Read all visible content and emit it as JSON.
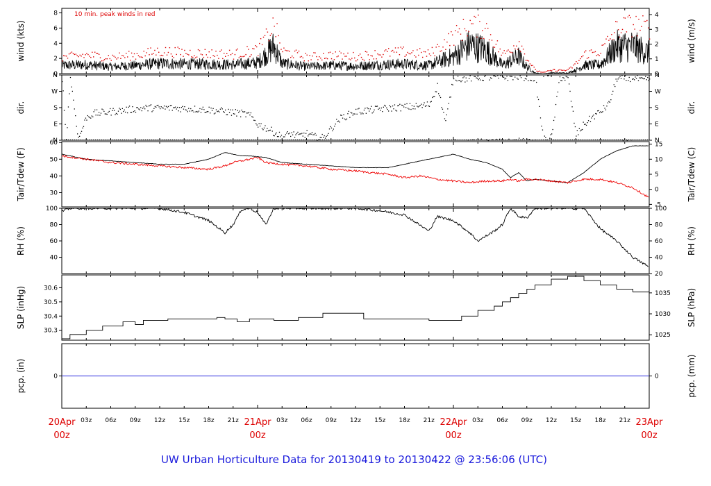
{
  "title": "UW Urban Horticulture Data for 20130419  to  20130422 @ 23:56:06  (UTC)",
  "colors": {
    "main": "#000000",
    "peak": "#dd0000",
    "dew": "#ee0000",
    "precip": "#2222dd",
    "day_label": "#dd0000",
    "title": "#1a1adc"
  },
  "time_axis": {
    "hours_total": 72,
    "day_labels": [
      {
        "hour": 0,
        "date": "20Apr",
        "time": "00z"
      },
      {
        "hour": 24,
        "date": "21Apr",
        "time": "00z"
      },
      {
        "hour": 48,
        "date": "22Apr",
        "time": "00z"
      },
      {
        "hour": 72,
        "date": "23Apr",
        "time": "00z"
      }
    ],
    "hour_labels": [
      "03z",
      "06z",
      "09z",
      "12z",
      "15z",
      "18z",
      "21z"
    ]
  },
  "chart_data": [
    {
      "type": "line",
      "name": "wind",
      "ylabel_left": "wind (kts)",
      "ylabel_right": "wind (m/s)",
      "annotation": "10 min. peak winds in red",
      "ylim": [
        0,
        8.6
      ],
      "left_ticks": [
        0,
        2,
        4,
        6,
        8
      ],
      "right_ticks": [
        0,
        1,
        2,
        3,
        4
      ],
      "right_factor": 1.9438,
      "series": [
        {
          "hours": [
            0,
            3,
            6,
            9,
            12,
            15,
            18,
            21,
            24,
            26,
            27,
            30,
            33,
            36,
            39,
            42,
            45,
            48,
            50,
            52,
            54,
            56,
            57,
            58,
            59,
            60,
            61,
            62,
            63,
            64,
            66,
            68,
            70,
            72
          ],
          "values": [
            1.2,
            1.3,
            1.0,
            1.2,
            1.5,
            1.4,
            1.4,
            1.3,
            1.6,
            4.0,
            1.5,
            1.0,
            1.2,
            1.1,
            1.3,
            1.4,
            1.2,
            2.5,
            4.2,
            3.5,
            1.2,
            2.5,
            1.0,
            0.1,
            0.0,
            0.1,
            0.1,
            0.1,
            0.5,
            1.2,
            1.3,
            4.0,
            4.0,
            3.0
          ]
        },
        {
          "name": "10 min. peak winds",
          "hours": [
            0,
            3,
            6,
            9,
            12,
            15,
            18,
            21,
            24,
            26,
            27,
            30,
            33,
            36,
            39,
            42,
            45,
            48,
            50,
            52,
            54,
            56,
            57,
            58,
            59,
            60,
            61,
            62,
            63,
            64,
            66,
            68,
            70,
            72
          ],
          "values": [
            2.2,
            2.5,
            2.2,
            2.5,
            3.0,
            2.8,
            2.7,
            2.6,
            3.2,
            6.5,
            3.0,
            2.2,
            2.5,
            2.3,
            2.7,
            2.9,
            2.6,
            5.0,
            6.5,
            6.0,
            2.5,
            4.3,
            2.0,
            0.5,
            0.2,
            0.5,
            0.5,
            0.5,
            1.4,
            2.6,
            3.0,
            6.0,
            6.5,
            6.0
          ]
        }
      ]
    },
    {
      "type": "scatter",
      "name": "dir",
      "ylabel_left": "dir.",
      "ylabel_right": "dir.",
      "ylim": [
        0,
        360
      ],
      "tick_labels": [
        {
          "v": 0,
          "t": "N"
        },
        {
          "v": 90,
          "t": "E"
        },
        {
          "v": 180,
          "t": "S"
        },
        {
          "v": 270,
          "t": "W"
        },
        {
          "v": 360,
          "t": "N"
        }
      ],
      "series": [
        {
          "hours": [
            0,
            0.5,
            1,
            2,
            3,
            4,
            6,
            8,
            10,
            12,
            14,
            16,
            18,
            20,
            22,
            23,
            24,
            25,
            26,
            27,
            28,
            29,
            30,
            31,
            32,
            34,
            36,
            38,
            40,
            42,
            44,
            45,
            46,
            47,
            48,
            49,
            50,
            51,
            52,
            54,
            56,
            57,
            58,
            59,
            60,
            61,
            62,
            63,
            64,
            65,
            66,
            67,
            68,
            69,
            70,
            71,
            72
          ],
          "values": [
            345,
            5,
            350,
            10,
            130,
            150,
            160,
            170,
            180,
            180,
            180,
            175,
            170,
            160,
            150,
            140,
            90,
            70,
            45,
            20,
            40,
            25,
            40,
            20,
            15,
            120,
            160,
            170,
            180,
            185,
            190,
            200,
            300,
            100,
            355,
            340,
            345,
            350,
            350,
            350,
            355,
            350,
            345,
            5,
            20,
            350,
            340,
            30,
            90,
            130,
            160,
            200,
            345,
            340,
            350,
            330,
            340
          ]
        }
      ]
    },
    {
      "type": "line",
      "name": "temp",
      "ylabel_left": "Tair/Tdew (F)",
      "ylabel_right": "Tair/Tdew (C)",
      "ylim": [
        21.5,
        60.5
      ],
      "left_ticks": [
        30,
        40,
        50,
        60
      ],
      "right_ticks": [
        -5,
        0,
        5,
        10,
        15
      ],
      "series": [
        {
          "name": "Tair",
          "hours": [
            0,
            3,
            6,
            9,
            12,
            15,
            18,
            20,
            21,
            22,
            23,
            24,
            25,
            27,
            30,
            33,
            36,
            40,
            42,
            44,
            46,
            48,
            50,
            52,
            54,
            55,
            56,
            57,
            58,
            60,
            62,
            64,
            66,
            68,
            70,
            72
          ],
          "values": [
            53,
            50,
            49,
            48,
            47,
            47,
            50,
            54,
            53,
            52,
            52,
            51.5,
            51,
            48,
            47,
            46,
            45,
            45,
            47,
            49,
            51,
            53,
            50,
            48,
            44,
            39,
            42,
            37,
            38,
            37,
            36,
            42,
            50,
            55,
            58,
            58
          ]
        },
        {
          "name": "Tdew",
          "hours": [
            0,
            3,
            6,
            9,
            12,
            15,
            18,
            20,
            21,
            22,
            23,
            24,
            25,
            27,
            30,
            33,
            36,
            40,
            42,
            44,
            46,
            48,
            50,
            52,
            54,
            55,
            56,
            57,
            58,
            60,
            62,
            64,
            66,
            68,
            70,
            72
          ],
          "values": [
            52,
            50,
            48,
            47,
            46,
            45,
            44,
            46,
            48,
            49,
            50,
            51,
            48,
            47,
            46,
            44,
            43,
            41,
            39,
            40,
            38,
            37,
            36,
            37,
            37,
            38,
            37,
            38,
            38,
            37,
            36,
            38,
            38,
            36,
            33,
            27
          ]
        }
      ]
    },
    {
      "type": "line",
      "name": "rh",
      "ylabel_left": "RH (%)",
      "ylabel_right": "RH (%)",
      "ylim": [
        20,
        100
      ],
      "left_ticks": [
        40,
        60,
        80,
        100
      ],
      "right_ticks": [
        20,
        40,
        60,
        80,
        100
      ],
      "series": [
        {
          "hours": [
            0,
            1,
            3,
            6,
            9,
            12,
            15,
            18,
            20,
            21,
            22,
            23,
            24,
            25,
            26,
            30,
            33,
            36,
            39,
            42,
            45,
            46,
            48,
            50,
            51,
            53,
            54,
            55,
            56,
            57,
            58,
            60,
            62,
            64,
            66,
            68,
            70,
            72
          ],
          "values": [
            96,
            100,
            100,
            100,
            100,
            100,
            95,
            85,
            70,
            80,
            98,
            100,
            95,
            80,
            100,
            100,
            100,
            100,
            97,
            92,
            72,
            90,
            85,
            70,
            60,
            72,
            80,
            100,
            90,
            88,
            100,
            100,
            100,
            100,
            75,
            60,
            40,
            28
          ]
        }
      ]
    },
    {
      "type": "line",
      "name": "slp",
      "ylabel_left": "SLP (inHg)",
      "ylabel_right": "SLP (hPa)",
      "ylim": [
        30.23,
        30.69
      ],
      "left_ticks": [
        30.3,
        30.4,
        30.5,
        30.6
      ],
      "right_ticks": [
        1025,
        1030,
        1035
      ],
      "series": [
        {
          "hours": [
            0,
            1,
            3,
            5,
            7.5,
            9,
            10,
            13,
            19,
            20,
            21.5,
            23,
            26,
            29,
            32,
            37,
            45,
            48,
            49,
            51,
            53,
            54,
            55,
            56,
            57,
            58,
            60,
            62,
            64,
            66,
            68,
            70,
            72
          ],
          "values": [
            30.24,
            30.27,
            30.3,
            30.33,
            30.36,
            30.34,
            30.37,
            30.38,
            30.39,
            30.38,
            30.36,
            30.38,
            30.37,
            30.39,
            30.42,
            30.38,
            30.37,
            30.37,
            30.4,
            30.44,
            30.47,
            30.5,
            30.53,
            30.56,
            30.59,
            30.62,
            30.66,
            30.68,
            30.65,
            30.62,
            30.59,
            30.57,
            30.57
          ]
        }
      ]
    },
    {
      "type": "line",
      "name": "pcp",
      "ylabel_left": "pcp. (in)",
      "ylabel_right": "pcp. (mm)",
      "ylim": [
        -1,
        1
      ],
      "left_ticks": [
        0
      ],
      "right_ticks": [
        0
      ],
      "series": [
        {
          "hours": [
            0,
            72
          ],
          "values": [
            0,
            0
          ]
        }
      ]
    }
  ]
}
